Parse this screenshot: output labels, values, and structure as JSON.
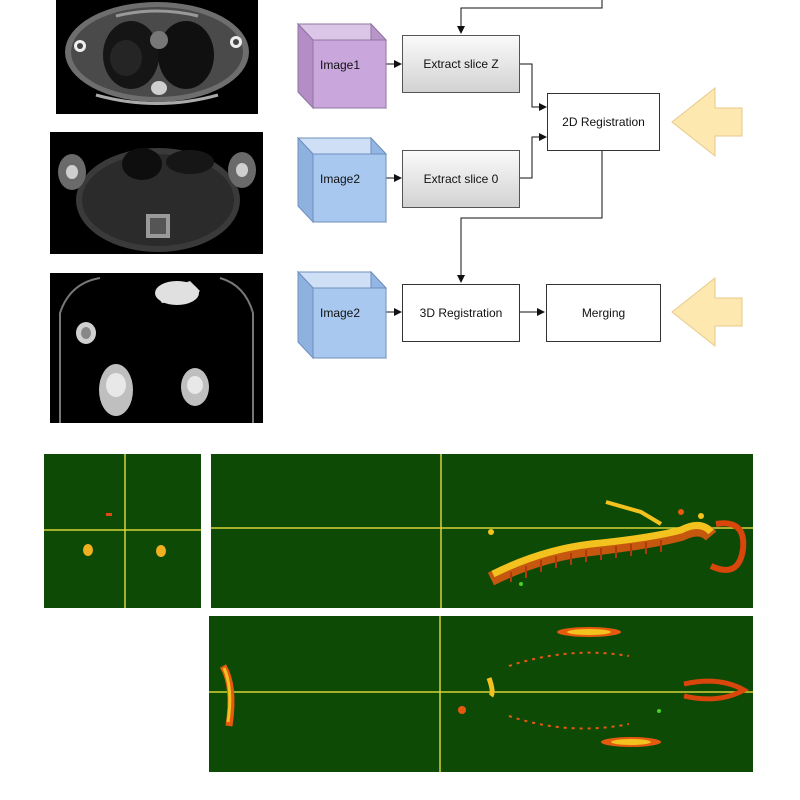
{
  "colors": {
    "cube_image1": "#c9a6dc",
    "cube_image2": "#a8c8ef",
    "arrow_hint": "#fde8b0",
    "panel_bg": "#0d4a05",
    "crosshair": "#d7d23a"
  },
  "workflow": {
    "cube1_label": "Image1",
    "cube2_label": "Image2",
    "cube3_label": "Image2",
    "extract_z_label": "Extract slice Z",
    "extract_0_label": "Extract slice 0",
    "reg2d_label": "2D Registration",
    "reg3d_label": "3D Registration",
    "merging_label": "Merging"
  },
  "icons": {
    "hint_arrow_1": "left-arrow-icon",
    "hint_arrow_2": "left-arrow-icon"
  }
}
